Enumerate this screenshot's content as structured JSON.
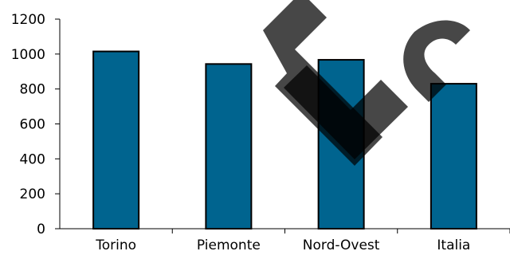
{
  "chart_data": {
    "type": "bar",
    "categories": [
      "Torino",
      "Piemonte",
      "Nord-Ovest",
      "Italia"
    ],
    "values": [
      1015,
      943,
      967,
      830
    ],
    "ylim": [
      0,
      1200
    ],
    "yticks": [
      "0",
      "200",
      "400",
      "600",
      "800",
      "1000",
      "1200"
    ],
    "grid": false,
    "bar_color": "#00648F",
    "bar_edge_color": "#000000"
  },
  "overlay": {
    "letters": [
      "E",
      "S"
    ],
    "color": "#000000"
  }
}
